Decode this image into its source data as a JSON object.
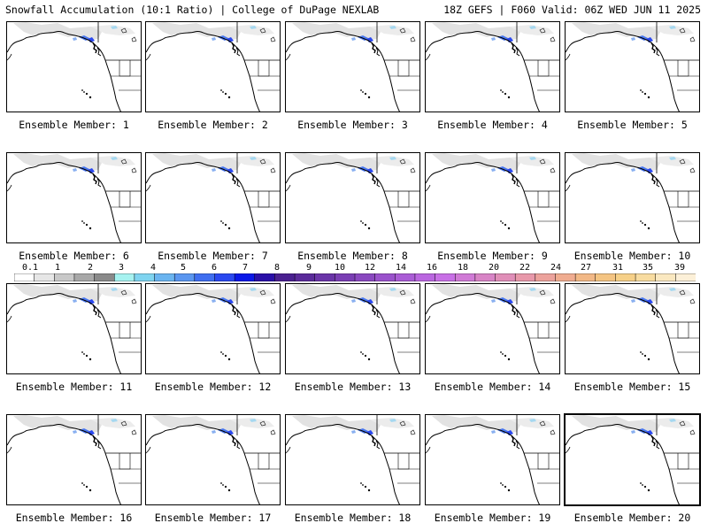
{
  "header": {
    "left_title": "Snowfall Accumulation (10:1 Ratio) | College of DuPage NEXLAB",
    "right_title": "18Z GEFS | F060 Valid: 06Z WED JUN 11 2025"
  },
  "members": [
    {
      "label": "Ensemble Member: 1"
    },
    {
      "label": "Ensemble Member: 2"
    },
    {
      "label": "Ensemble Member: 3"
    },
    {
      "label": "Ensemble Member: 4"
    },
    {
      "label": "Ensemble Member: 5"
    },
    {
      "label": "Ensemble Member: 6"
    },
    {
      "label": "Ensemble Member: 7"
    },
    {
      "label": "Ensemble Member: 8"
    },
    {
      "label": "Ensemble Member: 9"
    },
    {
      "label": "Ensemble Member: 10"
    },
    {
      "label": "Ensemble Member: 11"
    },
    {
      "label": "Ensemble Member: 12"
    },
    {
      "label": "Ensemble Member: 13"
    },
    {
      "label": "Ensemble Member: 14"
    },
    {
      "label": "Ensemble Member: 15"
    },
    {
      "label": "Ensemble Member: 16"
    },
    {
      "label": "Ensemble Member: 17"
    },
    {
      "label": "Ensemble Member: 18"
    },
    {
      "label": "Ensemble Member: 19"
    },
    {
      "label": "Ensemble Member: 20"
    }
  ],
  "colorbar": {
    "tick_labels": [
      "0.1",
      "1",
      "2",
      "3",
      "4",
      "5",
      "6",
      "7",
      "8",
      "9",
      "10",
      "12",
      "14",
      "16",
      "18",
      "20",
      "22",
      "24",
      "27",
      "31",
      "35",
      "39"
    ],
    "colors": [
      "#ffffff",
      "#e6e6e6",
      "#c8c8c8",
      "#a8a8a8",
      "#8a8a8a",
      "#a6f2f0",
      "#7fd4f0",
      "#6ab4f0",
      "#5a96f0",
      "#3f6ef0",
      "#2a48f0",
      "#0a18e8",
      "#2a10a8",
      "#4a2090",
      "#5a2a9a",
      "#6a34a8",
      "#7a3eb4",
      "#8a48c0",
      "#9a52cc",
      "#aa5cd6",
      "#ba66e0",
      "#c870e6",
      "#d07ad6",
      "#d884c6",
      "#e08eb8",
      "#e898aa",
      "#eca29c",
      "#f0ac90",
      "#f2b886",
      "#f4c482",
      "#f6d088",
      "#f8dca0",
      "#fae8c0",
      "#fcf0d8"
    ]
  }
}
